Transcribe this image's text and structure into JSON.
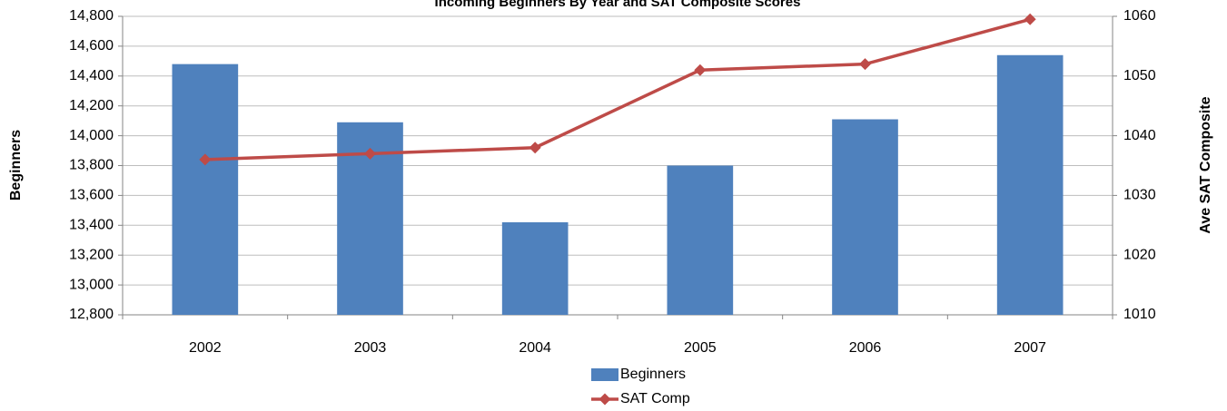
{
  "chart_data": {
    "type": "bar",
    "title": "Incoming Beginners By Year and SAT Composite Scores",
    "y_label": "Beginners",
    "y2_label": "Ave SAT Composite",
    "categories": [
      "2002",
      "2003",
      "2004",
      "2005",
      "2006",
      "2007"
    ],
    "series": [
      {
        "name": "Beginners",
        "type": "bar",
        "color": "#4f81bd",
        "values": [
          14480,
          14090,
          13420,
          13800,
          14110,
          14540
        ]
      },
      {
        "name": "SAT Comp",
        "type": "line",
        "axis": "y2",
        "color": "#be4b48",
        "values": [
          1036,
          1037,
          1038,
          1051,
          1052,
          1059.5
        ]
      }
    ],
    "ylim": [
      12800,
      14800
    ],
    "yticks": [
      {
        "value": 12800,
        "label": "12,800"
      },
      {
        "value": 13000,
        "label": "13,000"
      },
      {
        "value": 13200,
        "label": "13,200"
      },
      {
        "value": 13400,
        "label": "13,400"
      },
      {
        "value": 13600,
        "label": "13,600"
      },
      {
        "value": 13800,
        "label": "13,800"
      },
      {
        "value": 14000,
        "label": "14,000"
      },
      {
        "value": 14200,
        "label": "14,200"
      },
      {
        "value": 14400,
        "label": "14,400"
      },
      {
        "value": 14600,
        "label": "14,600"
      },
      {
        "value": 14800,
        "label": "14,800"
      }
    ],
    "y2lim": [
      1010,
      1060
    ],
    "y2ticks": [
      1010,
      1020,
      1030,
      1040,
      1050,
      1060
    ],
    "grid": true,
    "legend": "bottom"
  }
}
